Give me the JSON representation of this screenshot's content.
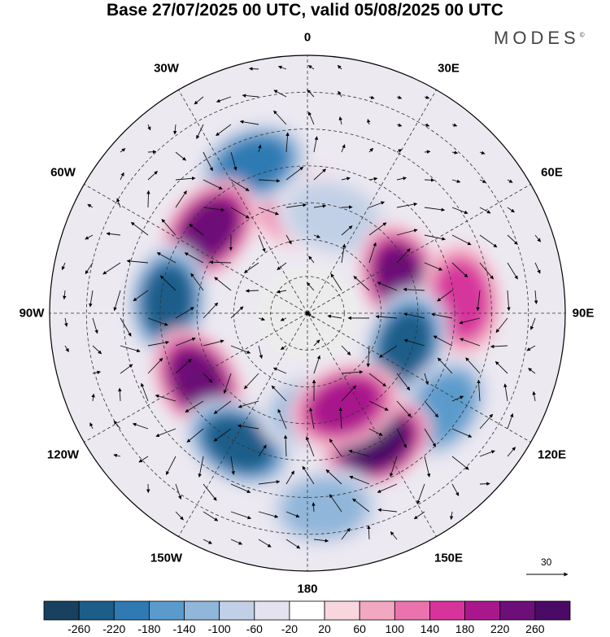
{
  "header": {
    "title": "Base 27/07/2025 00 UTC, valid 05/08/2025 00 UTC",
    "brand": "MODES",
    "brand_mark": "©"
  },
  "map": {
    "projection": "south-polar-stereographic",
    "longitude_labels": [
      "0",
      "30E",
      "60E",
      "90E",
      "120E",
      "150E",
      "180",
      "150W",
      "120W",
      "90W",
      "60W",
      "30W"
    ],
    "reference_vector": {
      "value": "30"
    }
  },
  "anomalies": [
    {
      "id": "pos-0",
      "value": 100,
      "center": [
        0,
        -62
      ]
    },
    {
      "id": "neg-20w",
      "value": -180,
      "center": [
        -20,
        -47
      ]
    },
    {
      "id": "pos-50w",
      "value": 220,
      "center": [
        -50,
        -55
      ]
    },
    {
      "id": "neg-10e",
      "value": -60,
      "center": [
        15,
        -63
      ]
    },
    {
      "id": "pos-70e",
      "value": 250,
      "center": [
        70,
        -63
      ]
    },
    {
      "id": "pos-80e",
      "value": 150,
      "center": [
        85,
        -48
      ]
    },
    {
      "id": "neg-85w",
      "value": -240,
      "center": [
        -85,
        -52
      ]
    },
    {
      "id": "neg-110e",
      "value": -220,
      "center": [
        108,
        -62
      ]
    },
    {
      "id": "neg-120e",
      "value": -170,
      "center": [
        125,
        -45
      ]
    },
    {
      "id": "pos-120w",
      "value": 230,
      "center": [
        -122,
        -55
      ]
    },
    {
      "id": "neg-150w",
      "value": -240,
      "center": [
        -152,
        -50
      ]
    },
    {
      "id": "neg-170e",
      "value": -130,
      "center": [
        175,
        -63
      ]
    },
    {
      "id": "pos-150e",
      "value": 260,
      "center": [
        152,
        -50
      ]
    },
    {
      "id": "pos-165e",
      "value": 200,
      "center": [
        158,
        -63
      ]
    },
    {
      "id": "neg-175w",
      "value": -120,
      "center": [
        175,
        -37
      ]
    }
  ],
  "colorbar": {
    "levels": [
      "-260",
      "-220",
      "-180",
      "-140",
      "-100",
      "-60",
      "-20",
      "20",
      "60",
      "100",
      "140",
      "180",
      "220",
      "260"
    ],
    "colors": [
      "#17415f",
      "#1d5d8a",
      "#2f7ab3",
      "#5a9bcc",
      "#90b6da",
      "#c1d0e6",
      "#e4e2ee",
      "#ffffff",
      "#f8d6de",
      "#f3a8c1",
      "#ea73ad",
      "#d6349c",
      "#a8188c",
      "#6d0f78",
      "#4a0a66"
    ]
  }
}
